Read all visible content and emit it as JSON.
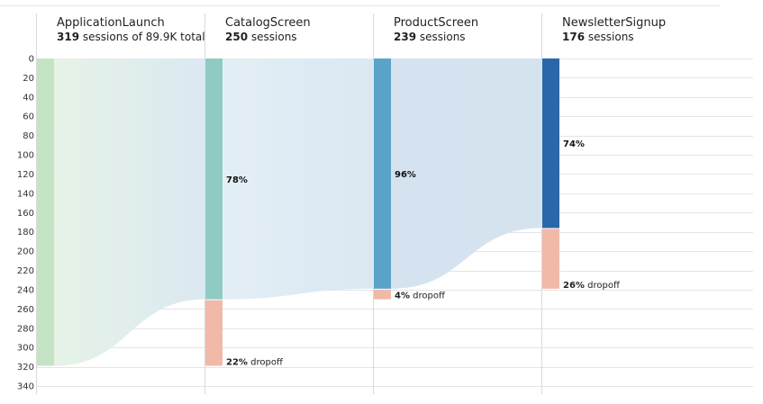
{
  "chart_data": {
    "type": "bar",
    "ylim": [
      0,
      340
    ],
    "y_ticks": [
      0,
      20,
      40,
      60,
      80,
      100,
      120,
      140,
      160,
      180,
      200,
      220,
      240,
      260,
      280,
      300,
      320,
      340
    ],
    "grid": true,
    "categories": [
      "ApplicationLaunch",
      "CatalogScreen",
      "ProductScreen",
      "NewsletterSignup"
    ],
    "sessions": [
      319,
      250,
      239,
      176
    ],
    "dropoffs": [
      null,
      69,
      11,
      63
    ],
    "headers": [
      {
        "name": "ApplicationLaunch",
        "count": "319",
        "suffix": " sessions of 89.9K total"
      },
      {
        "name": "CatalogScreen",
        "count": "250",
        "suffix": " sessions"
      },
      {
        "name": "ProductScreen",
        "count": "239",
        "suffix": " sessions"
      },
      {
        "name": "NewsletterSignup",
        "count": "176",
        "suffix": " sessions"
      }
    ],
    "conversion_labels": [
      null,
      "78%",
      "96%",
      "74%"
    ],
    "dropoff_labels": [
      null,
      "22%",
      "4%",
      "26%"
    ],
    "dropoff_word": " dropoff",
    "colors": {
      "bars": [
        "#c5e4c6",
        "#8fcbc3",
        "#5aa3c8",
        "#2a66a8"
      ],
      "dropoff": "#f1b9a8",
      "flow": "#dbe8f2",
      "flow_start": "#e6f3e6",
      "grid": "#e4e4e4",
      "divider": "#d9d9d9"
    }
  }
}
